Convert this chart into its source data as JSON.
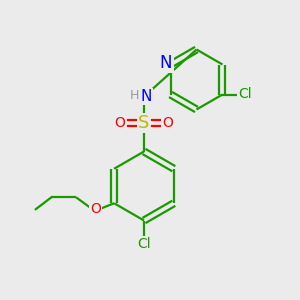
{
  "background_color": "#ebebeb",
  "bond_color": "#1a9900",
  "atom_colors": {
    "C": "#1a9900",
    "N": "#0000ff",
    "O": "#ff0000",
    "S": "#cccc00",
    "Cl": "#1a9900",
    "H": "#808080"
  },
  "figsize": [
    3.0,
    3.0
  ],
  "dpi": 100
}
